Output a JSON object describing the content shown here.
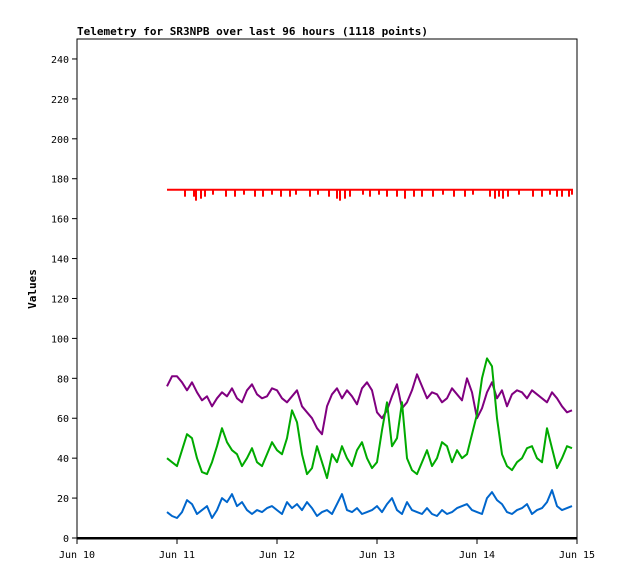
{
  "chart_data": {
    "type": "line",
    "title": "Telemetry for SR3NPB over last 96 hours (1118 points)",
    "xlabel": "",
    "ylabel": "Values",
    "ylim": [
      0,
      250
    ],
    "xlim": [
      "Jun 10",
      "Jun 15"
    ],
    "x_ticks": [
      "Jun 10",
      "Jun 11",
      "Jun 12",
      "Jun 13",
      "Jun 14",
      "Jun 15"
    ],
    "y_ticks": [
      0,
      20,
      40,
      60,
      80,
      100,
      120,
      140,
      160,
      180,
      200,
      220,
      240
    ],
    "grid": false,
    "legend": "none",
    "series": [
      {
        "color": "#ff0000",
        "style": "baseline-with-dips",
        "baseline": 174.5,
        "x": [
          10.9,
          14.96
        ],
        "dips": [
          {
            "x": 11.08,
            "y": 171
          },
          {
            "x": 11.17,
            "y": 171
          },
          {
            "x": 11.19,
            "y": 169
          },
          {
            "x": 11.24,
            "y": 170
          },
          {
            "x": 11.28,
            "y": 171
          },
          {
            "x": 11.36,
            "y": 172
          },
          {
            "x": 11.49,
            "y": 171
          },
          {
            "x": 11.58,
            "y": 171
          },
          {
            "x": 11.67,
            "y": 172
          },
          {
            "x": 11.78,
            "y": 171
          },
          {
            "x": 11.86,
            "y": 171
          },
          {
            "x": 11.95,
            "y": 172
          },
          {
            "x": 12.04,
            "y": 171
          },
          {
            "x": 12.13,
            "y": 171
          },
          {
            "x": 12.19,
            "y": 172
          },
          {
            "x": 12.33,
            "y": 171
          },
          {
            "x": 12.41,
            "y": 172
          },
          {
            "x": 12.52,
            "y": 171
          },
          {
            "x": 12.6,
            "y": 170
          },
          {
            "x": 12.63,
            "y": 169
          },
          {
            "x": 12.68,
            "y": 170
          },
          {
            "x": 12.73,
            "y": 171
          },
          {
            "x": 12.86,
            "y": 172
          },
          {
            "x": 12.93,
            "y": 171
          },
          {
            "x": 13.02,
            "y": 172
          },
          {
            "x": 13.1,
            "y": 171
          },
          {
            "x": 13.2,
            "y": 171
          },
          {
            "x": 13.28,
            "y": 170
          },
          {
            "x": 13.37,
            "y": 171
          },
          {
            "x": 13.45,
            "y": 171
          },
          {
            "x": 13.56,
            "y": 171
          },
          {
            "x": 13.66,
            "y": 172
          },
          {
            "x": 13.77,
            "y": 171
          },
          {
            "x": 13.88,
            "y": 171
          },
          {
            "x": 13.96,
            "y": 172
          },
          {
            "x": 14.13,
            "y": 171
          },
          {
            "x": 14.18,
            "y": 170
          },
          {
            "x": 14.22,
            "y": 171
          },
          {
            "x": 14.26,
            "y": 170
          },
          {
            "x": 14.31,
            "y": 171
          },
          {
            "x": 14.42,
            "y": 172
          },
          {
            "x": 14.56,
            "y": 171
          },
          {
            "x": 14.65,
            "y": 171
          },
          {
            "x": 14.73,
            "y": 172
          },
          {
            "x": 14.8,
            "y": 171
          },
          {
            "x": 14.85,
            "y": 171
          },
          {
            "x": 14.92,
            "y": 171
          },
          {
            "x": 14.95,
            "y": 172
          }
        ]
      },
      {
        "color": "#800080",
        "x": [
          10.9,
          10.95,
          11.0,
          11.05,
          11.1,
          11.15,
          11.2,
          11.25,
          11.3,
          11.35,
          11.4,
          11.45,
          11.5,
          11.55,
          11.6,
          11.65,
          11.7,
          11.75,
          11.8,
          11.85,
          11.9,
          11.95,
          12.0,
          12.05,
          12.1,
          12.15,
          12.2,
          12.25,
          12.3,
          12.35,
          12.4,
          12.45,
          12.5,
          12.55,
          12.6,
          12.65,
          12.7,
          12.75,
          12.8,
          12.85,
          12.9,
          12.95,
          13.0,
          13.05,
          13.1,
          13.15,
          13.2,
          13.25,
          13.3,
          13.35,
          13.4,
          13.45,
          13.5,
          13.55,
          13.6,
          13.65,
          13.7,
          13.75,
          13.8,
          13.85,
          13.9,
          13.95,
          14.0,
          14.05,
          14.1,
          14.15,
          14.2,
          14.25,
          14.3,
          14.35,
          14.4,
          14.45,
          14.5,
          14.55,
          14.6,
          14.65,
          14.7,
          14.75,
          14.8,
          14.85,
          14.9,
          14.95
        ],
        "y": [
          76,
          81,
          81,
          78,
          74,
          78,
          73,
          69,
          71,
          66,
          70,
          73,
          71,
          75,
          70,
          68,
          74,
          77,
          72,
          70,
          71,
          75,
          74,
          70,
          68,
          71,
          74,
          66,
          63,
          60,
          55,
          52,
          66,
          72,
          75,
          70,
          74,
          71,
          67,
          75,
          78,
          74,
          63,
          60,
          64,
          71,
          77,
          65,
          68,
          74,
          82,
          76,
          70,
          73,
          72,
          68,
          70,
          75,
          72,
          69,
          80,
          73,
          60,
          65,
          73,
          78,
          70,
          74,
          66,
          72,
          74,
          73,
          70,
          74,
          72,
          70,
          68,
          73,
          70,
          66,
          63,
          64
        ]
      },
      {
        "color": "#00aa00",
        "x": [
          10.9,
          10.95,
          11.0,
          11.05,
          11.1,
          11.15,
          11.2,
          11.25,
          11.3,
          11.35,
          11.4,
          11.45,
          11.5,
          11.55,
          11.6,
          11.65,
          11.7,
          11.75,
          11.8,
          11.85,
          11.9,
          11.95,
          12.0,
          12.05,
          12.1,
          12.15,
          12.2,
          12.25,
          12.3,
          12.35,
          12.4,
          12.45,
          12.5,
          12.55,
          12.6,
          12.65,
          12.7,
          12.75,
          12.8,
          12.85,
          12.9,
          12.95,
          13.0,
          13.05,
          13.1,
          13.15,
          13.2,
          13.25,
          13.3,
          13.35,
          13.4,
          13.45,
          13.5,
          13.55,
          13.6,
          13.65,
          13.7,
          13.75,
          13.8,
          13.85,
          13.9,
          13.95,
          14.0,
          14.05,
          14.1,
          14.15,
          14.2,
          14.25,
          14.3,
          14.35,
          14.4,
          14.45,
          14.5,
          14.55,
          14.6,
          14.65,
          14.7,
          14.75,
          14.8,
          14.85,
          14.9,
          14.95
        ],
        "y": [
          40,
          38,
          36,
          44,
          52,
          50,
          40,
          33,
          32,
          38,
          46,
          55,
          48,
          44,
          42,
          36,
          40,
          45,
          38,
          36,
          42,
          48,
          44,
          42,
          50,
          64,
          58,
          42,
          32,
          35,
          46,
          38,
          30,
          42,
          38,
          46,
          40,
          36,
          44,
          48,
          40,
          35,
          38,
          54,
          68,
          46,
          50,
          68,
          40,
          34,
          32,
          38,
          44,
          36,
          40,
          48,
          46,
          38,
          44,
          40,
          42,
          52,
          62,
          80,
          90,
          86,
          60,
          42,
          36,
          34,
          38,
          40,
          45,
          46,
          40,
          38,
          55,
          45,
          35,
          40,
          46,
          45
        ]
      },
      {
        "color": "#0066cc",
        "x": [
          10.9,
          10.95,
          11.0,
          11.05,
          11.1,
          11.15,
          11.2,
          11.25,
          11.3,
          11.35,
          11.4,
          11.45,
          11.5,
          11.55,
          11.6,
          11.65,
          11.7,
          11.75,
          11.8,
          11.85,
          11.9,
          11.95,
          12.0,
          12.05,
          12.1,
          12.15,
          12.2,
          12.25,
          12.3,
          12.35,
          12.4,
          12.45,
          12.5,
          12.55,
          12.6,
          12.65,
          12.7,
          12.75,
          12.8,
          12.85,
          12.9,
          12.95,
          13.0,
          13.05,
          13.1,
          13.15,
          13.2,
          13.25,
          13.3,
          13.35,
          13.4,
          13.45,
          13.5,
          13.55,
          13.6,
          13.65,
          13.7,
          13.75,
          13.8,
          13.85,
          13.9,
          13.95,
          14.0,
          14.05,
          14.1,
          14.15,
          14.2,
          14.25,
          14.3,
          14.35,
          14.4,
          14.45,
          14.5,
          14.55,
          14.6,
          14.65,
          14.7,
          14.75,
          14.8,
          14.85,
          14.9,
          14.95
        ],
        "y": [
          13,
          11,
          10,
          13,
          19,
          17,
          12,
          14,
          16,
          10,
          14,
          20,
          18,
          22,
          16,
          18,
          14,
          12,
          14,
          13,
          15,
          16,
          14,
          12,
          18,
          15,
          17,
          14,
          18,
          15,
          11,
          13,
          14,
          12,
          17,
          22,
          14,
          13,
          15,
          12,
          13,
          14,
          16,
          13,
          17,
          20,
          14,
          12,
          18,
          14,
          13,
          12,
          15,
          12,
          11,
          14,
          12,
          13,
          15,
          16,
          17,
          14,
          13,
          12,
          20,
          23,
          19,
          17,
          13,
          12,
          14,
          15,
          17,
          12,
          14,
          15,
          18,
          24,
          16,
          14,
          15,
          16
        ]
      }
    ]
  }
}
